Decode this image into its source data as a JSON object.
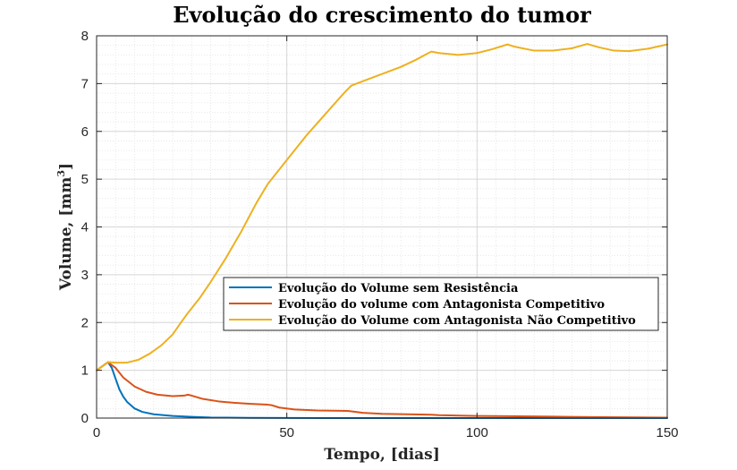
{
  "chart_data": {
    "type": "line",
    "title": "Evolução do crescimento do tumor",
    "xlabel": "Tempo, [dias]",
    "ylabel_main": "Volume, [mm",
    "ylabel_sup": "3",
    "ylabel_end": "]",
    "xlim": [
      0,
      150
    ],
    "ylim": [
      0,
      8
    ],
    "x_ticks": [
      0,
      50,
      100,
      150
    ],
    "y_ticks": [
      0,
      1,
      2,
      3,
      4,
      5,
      6,
      7,
      8
    ],
    "grid": true,
    "minor_grid": true,
    "legend_position": "center-right",
    "series": [
      {
        "name": "Evolução do Volume sem Resistência",
        "color": "#0072BD",
        "points": [
          [
            0,
            1
          ],
          [
            3,
            1.17
          ],
          [
            4,
            1.05
          ],
          [
            5,
            0.82
          ],
          [
            6,
            0.6
          ],
          [
            7,
            0.45
          ],
          [
            8,
            0.34
          ],
          [
            10,
            0.2
          ],
          [
            12,
            0.13
          ],
          [
            15,
            0.08
          ],
          [
            20,
            0.045
          ],
          [
            25,
            0.025
          ],
          [
            30,
            0.012
          ],
          [
            40,
            0.004
          ],
          [
            60,
            0.001
          ],
          [
            150,
            0
          ]
        ]
      },
      {
        "name": "Evolução do volume com Antagonista Competitivo",
        "color": "#D95319",
        "points": [
          [
            0,
            1
          ],
          [
            3,
            1.17
          ],
          [
            5,
            1.05
          ],
          [
            7,
            0.85
          ],
          [
            10,
            0.66
          ],
          [
            13,
            0.55
          ],
          [
            16,
            0.49
          ],
          [
            20,
            0.46
          ],
          [
            23,
            0.47
          ],
          [
            24,
            0.49
          ],
          [
            25,
            0.47
          ],
          [
            28,
            0.4
          ],
          [
            32,
            0.35
          ],
          [
            36,
            0.32
          ],
          [
            40,
            0.3
          ],
          [
            45,
            0.28
          ],
          [
            46,
            0.27
          ],
          [
            48,
            0.22
          ],
          [
            52,
            0.18
          ],
          [
            58,
            0.16
          ],
          [
            66,
            0.15
          ],
          [
            67,
            0.14
          ],
          [
            70,
            0.11
          ],
          [
            75,
            0.09
          ],
          [
            85,
            0.075
          ],
          [
            88,
            0.07
          ],
          [
            90,
            0.06
          ],
          [
            100,
            0.045
          ],
          [
            108,
            0.04
          ],
          [
            120,
            0.03
          ],
          [
            130,
            0.02
          ],
          [
            150,
            0.01
          ]
        ]
      },
      {
        "name": "Evolução do Volume com Antagonista Não Competitivo",
        "color": "#EDB120",
        "points": [
          [
            0,
            1
          ],
          [
            3,
            1.17
          ],
          [
            5,
            1.16
          ],
          [
            8,
            1.16
          ],
          [
            11,
            1.22
          ],
          [
            14,
            1.35
          ],
          [
            17,
            1.52
          ],
          [
            20,
            1.75
          ],
          [
            22,
            1.98
          ],
          [
            24,
            2.2
          ],
          [
            27,
            2.5
          ],
          [
            30,
            2.85
          ],
          [
            34,
            3.35
          ],
          [
            38,
            3.9
          ],
          [
            42,
            4.5
          ],
          [
            45,
            4.9
          ],
          [
            50,
            5.4
          ],
          [
            55,
            5.9
          ],
          [
            60,
            6.35
          ],
          [
            65,
            6.8
          ],
          [
            67,
            6.96
          ],
          [
            70,
            7.05
          ],
          [
            75,
            7.2
          ],
          [
            80,
            7.35
          ],
          [
            84,
            7.5
          ],
          [
            87,
            7.63
          ],
          [
            88,
            7.67
          ],
          [
            90,
            7.64
          ],
          [
            95,
            7.6
          ],
          [
            100,
            7.64
          ],
          [
            104,
            7.72
          ],
          [
            108,
            7.82
          ],
          [
            110,
            7.77
          ],
          [
            115,
            7.69
          ],
          [
            120,
            7.69
          ],
          [
            125,
            7.74
          ],
          [
            129,
            7.83
          ],
          [
            132,
            7.76
          ],
          [
            136,
            7.69
          ],
          [
            140,
            7.68
          ],
          [
            145,
            7.73
          ],
          [
            150,
            7.82
          ]
        ]
      }
    ]
  }
}
